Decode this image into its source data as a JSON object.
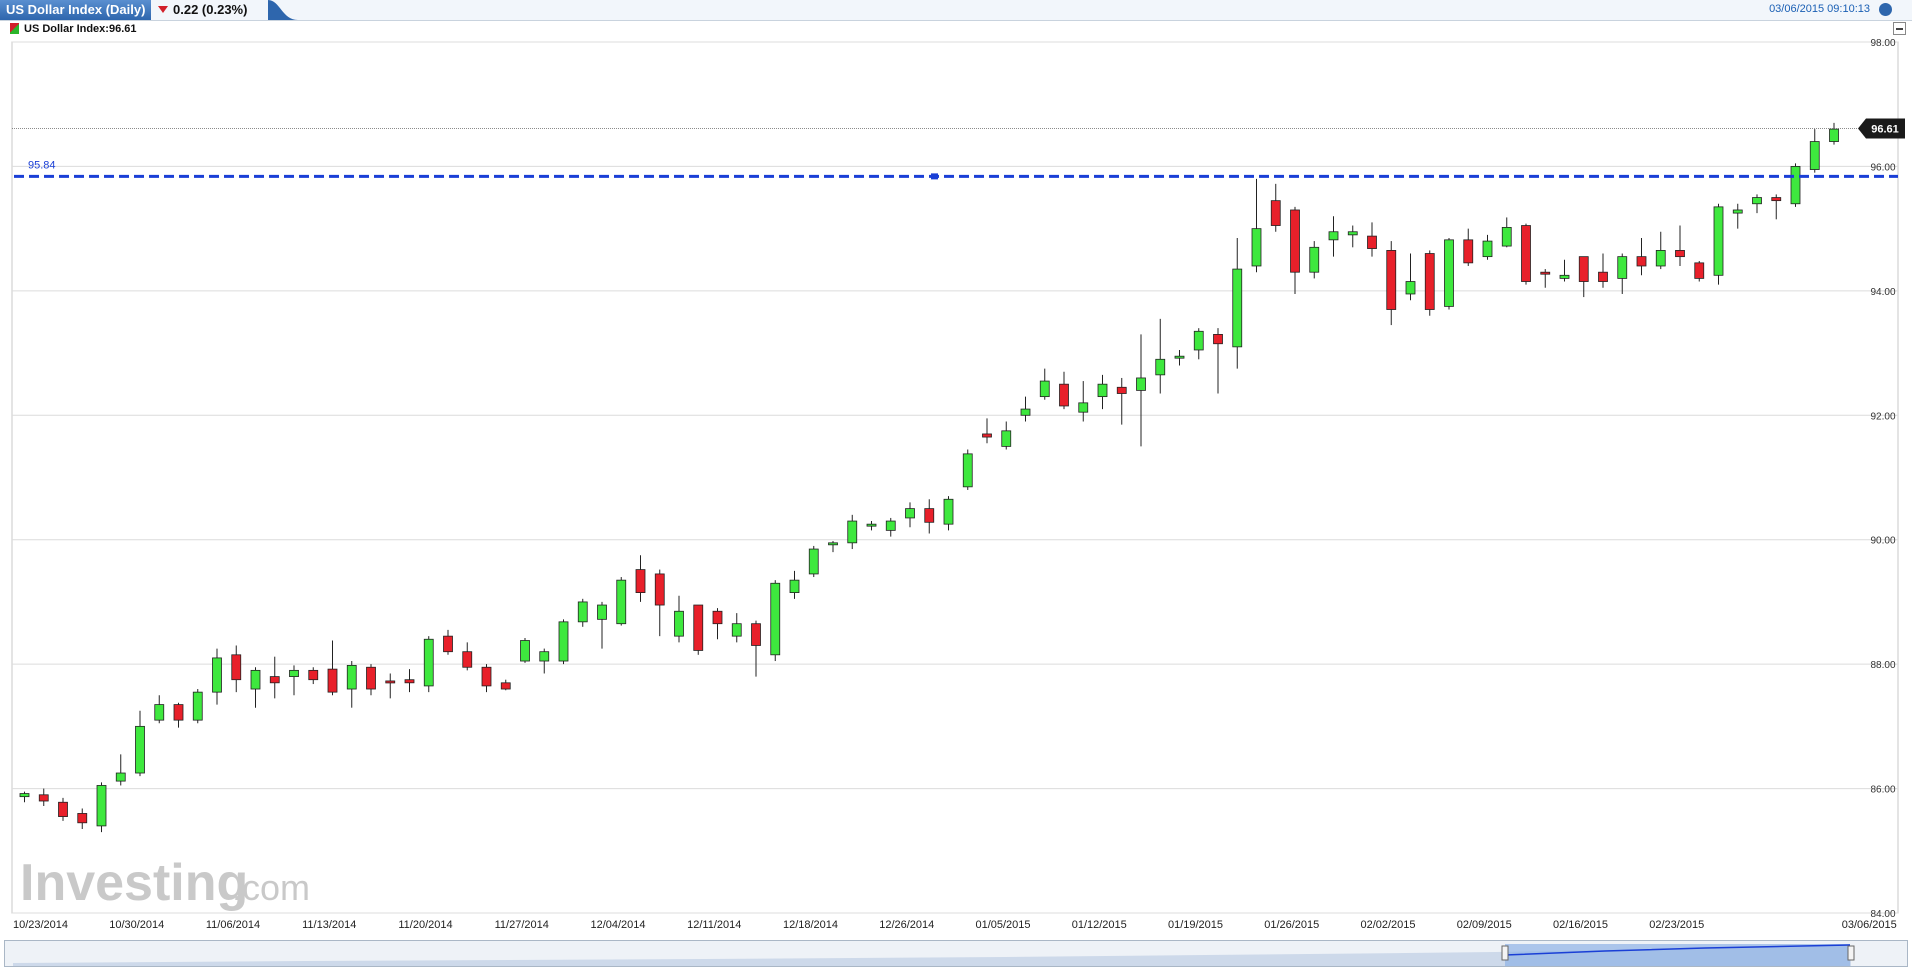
{
  "header": {
    "title": "US Dollar Index (Daily)",
    "change": "0.22 (0.23%)",
    "timestamp": "03/06/2015 09:10:13",
    "legend": "US Dollar Index:96.61"
  },
  "colors": {
    "up": "#3ee83e",
    "down": "#e8202a",
    "level_line": "#1a3fd6",
    "grid": "#dcdcdc"
  },
  "chart_data": {
    "type": "candlestick",
    "ylim": [
      84,
      98
    ],
    "yticks": [
      "98.00",
      "96.00",
      "94.00",
      "92.00",
      "90.00",
      "88.00",
      "86.00",
      "84.00"
    ],
    "xticks": [
      "10/23/2014",
      "10/30/2014",
      "11/06/2014",
      "11/13/2014",
      "11/20/2014",
      "11/27/2014",
      "12/04/2014",
      "12/11/2014",
      "12/18/2014",
      "12/26/2014",
      "01/05/2015",
      "01/12/2015",
      "01/19/2015",
      "01/26/2015",
      "02/02/2015",
      "02/09/2015",
      "02/16/2015",
      "02/23/2015",
      "03/06/2015"
    ],
    "xtick_index": [
      0,
      5,
      10,
      15,
      20,
      25,
      30,
      35,
      40,
      45,
      50,
      55,
      60,
      65,
      70,
      75,
      80,
      85,
      95
    ],
    "last_price_label": "96.61",
    "last_price": 96.61,
    "level_label": "95.84",
    "level": 95.84,
    "candles": [
      [
        85.87,
        85.92,
        85.78,
        85.95
      ],
      [
        85.9,
        85.8,
        85.72,
        86.0
      ],
      [
        85.78,
        85.55,
        85.48,
        85.85
      ],
      [
        85.6,
        85.45,
        85.35,
        85.68
      ],
      [
        85.4,
        86.05,
        85.3,
        86.1
      ],
      [
        86.12,
        86.25,
        86.05,
        86.55
      ],
      [
        86.25,
        87.0,
        86.2,
        87.25
      ],
      [
        87.1,
        87.35,
        87.05,
        87.5
      ],
      [
        87.35,
        87.1,
        86.98,
        87.38
      ],
      [
        87.1,
        87.55,
        87.05,
        87.6
      ],
      [
        87.55,
        88.1,
        87.35,
        88.25
      ],
      [
        88.15,
        87.75,
        87.55,
        88.3
      ],
      [
        87.6,
        87.9,
        87.3,
        87.95
      ],
      [
        87.8,
        87.7,
        87.45,
        88.12
      ],
      [
        87.8,
        87.9,
        87.5,
        87.98
      ],
      [
        87.9,
        87.75,
        87.68,
        87.95
      ],
      [
        87.92,
        87.55,
        87.5,
        88.38
      ],
      [
        87.6,
        87.98,
        87.3,
        88.05
      ],
      [
        87.95,
        87.6,
        87.5,
        88.0
      ],
      [
        87.73,
        87.72,
        87.45,
        87.85
      ],
      [
        87.75,
        87.7,
        87.55,
        87.92
      ],
      [
        87.65,
        88.4,
        87.55,
        88.45
      ],
      [
        88.45,
        88.2,
        88.15,
        88.55
      ],
      [
        88.2,
        87.95,
        87.9,
        88.35
      ],
      [
        87.95,
        87.65,
        87.55,
        88.0
      ],
      [
        87.7,
        87.6,
        87.58,
        87.75
      ],
      [
        88.05,
        88.38,
        88.02,
        88.42
      ],
      [
        88.05,
        88.2,
        87.85,
        88.25
      ],
      [
        88.05,
        88.68,
        88.0,
        88.72
      ],
      [
        88.68,
        89.0,
        88.6,
        89.05
      ],
      [
        88.72,
        88.95,
        88.25,
        89.0
      ],
      [
        88.65,
        89.35,
        88.62,
        89.4
      ],
      [
        89.52,
        89.15,
        89.0,
        89.75
      ],
      [
        89.45,
        88.95,
        88.45,
        89.52
      ],
      [
        88.45,
        88.85,
        88.35,
        89.1
      ],
      [
        88.95,
        88.22,
        88.15,
        88.95
      ],
      [
        88.85,
        88.65,
        88.4,
        88.9
      ],
      [
        88.45,
        88.65,
        88.35,
        88.82
      ],
      [
        88.65,
        88.3,
        87.8,
        88.7
      ],
      [
        88.15,
        89.3,
        88.05,
        89.35
      ],
      [
        89.15,
        89.35,
        89.05,
        89.5
      ],
      [
        89.45,
        89.85,
        89.4,
        89.9
      ],
      [
        89.95,
        89.95,
        89.8,
        89.98
      ],
      [
        89.95,
        90.3,
        89.85,
        90.4
      ],
      [
        90.25,
        90.25,
        90.15,
        90.3
      ],
      [
        90.15,
        90.3,
        90.05,
        90.35
      ],
      [
        90.35,
        90.5,
        90.2,
        90.6
      ],
      [
        90.5,
        90.28,
        90.1,
        90.65
      ],
      [
        90.25,
        90.65,
        90.15,
        90.7
      ],
      [
        90.85,
        91.38,
        90.8,
        91.45
      ],
      [
        91.7,
        91.65,
        91.55,
        91.95
      ],
      [
        91.5,
        91.75,
        91.45,
        91.9
      ],
      [
        92.0,
        92.1,
        91.9,
        92.3
      ],
      [
        92.3,
        92.55,
        92.25,
        92.75
      ],
      [
        92.5,
        92.15,
        92.1,
        92.7
      ],
      [
        92.05,
        92.2,
        91.9,
        92.55
      ],
      [
        92.3,
        92.5,
        92.1,
        92.65
      ],
      [
        92.45,
        92.35,
        91.85,
        92.6
      ],
      [
        92.4,
        92.6,
        91.5,
        93.3
      ],
      [
        92.65,
        92.9,
        92.35,
        93.55
      ],
      [
        92.95,
        92.95,
        92.8,
        93.05
      ],
      [
        93.05,
        93.35,
        92.9,
        93.4
      ],
      [
        93.3,
        93.15,
        92.35,
        93.4
      ],
      [
        93.1,
        94.35,
        92.75,
        94.85
      ],
      [
        94.4,
        95.0,
        94.3,
        95.8
      ],
      [
        95.45,
        95.05,
        94.95,
        95.72
      ],
      [
        95.3,
        94.3,
        93.95,
        95.35
      ],
      [
        94.3,
        94.7,
        94.2,
        94.8
      ],
      [
        94.82,
        94.95,
        94.55,
        95.2
      ],
      [
        94.9,
        94.95,
        94.7,
        95.05
      ],
      [
        94.88,
        94.68,
        94.55,
        95.1
      ],
      [
        94.65,
        93.7,
        93.45,
        94.8
      ],
      [
        93.95,
        94.15,
        93.85,
        94.6
      ],
      [
        94.6,
        93.7,
        93.6,
        94.65
      ],
      [
        93.75,
        94.82,
        93.7,
        94.85
      ],
      [
        94.82,
        94.45,
        94.4,
        95.0
      ],
      [
        94.55,
        94.8,
        94.5,
        94.9
      ],
      [
        94.72,
        95.02,
        94.7,
        95.18
      ],
      [
        95.05,
        94.15,
        94.1,
        95.08
      ],
      [
        94.3,
        94.28,
        94.05,
        94.35
      ],
      [
        94.2,
        94.25,
        94.15,
        94.5
      ],
      [
        94.55,
        94.15,
        93.9,
        94.55
      ],
      [
        94.3,
        94.15,
        94.05,
        94.6
      ],
      [
        94.2,
        94.55,
        93.95,
        94.6
      ],
      [
        94.55,
        94.4,
        94.25,
        94.85
      ],
      [
        94.4,
        94.65,
        94.35,
        94.95
      ],
      [
        94.65,
        94.55,
        94.4,
        95.05
      ],
      [
        94.45,
        94.2,
        94.15,
        94.48
      ],
      [
        94.25,
        95.35,
        94.1,
        95.4
      ],
      [
        95.25,
        95.3,
        95.0,
        95.4
      ],
      [
        95.4,
        95.5,
        95.25,
        95.55
      ],
      [
        95.5,
        95.45,
        95.15,
        95.55
      ],
      [
        95.4,
        96.0,
        95.35,
        96.05
      ],
      [
        95.95,
        96.4,
        95.9,
        96.6
      ],
      [
        96.4,
        96.6,
        96.35,
        96.7
      ]
    ]
  }
}
